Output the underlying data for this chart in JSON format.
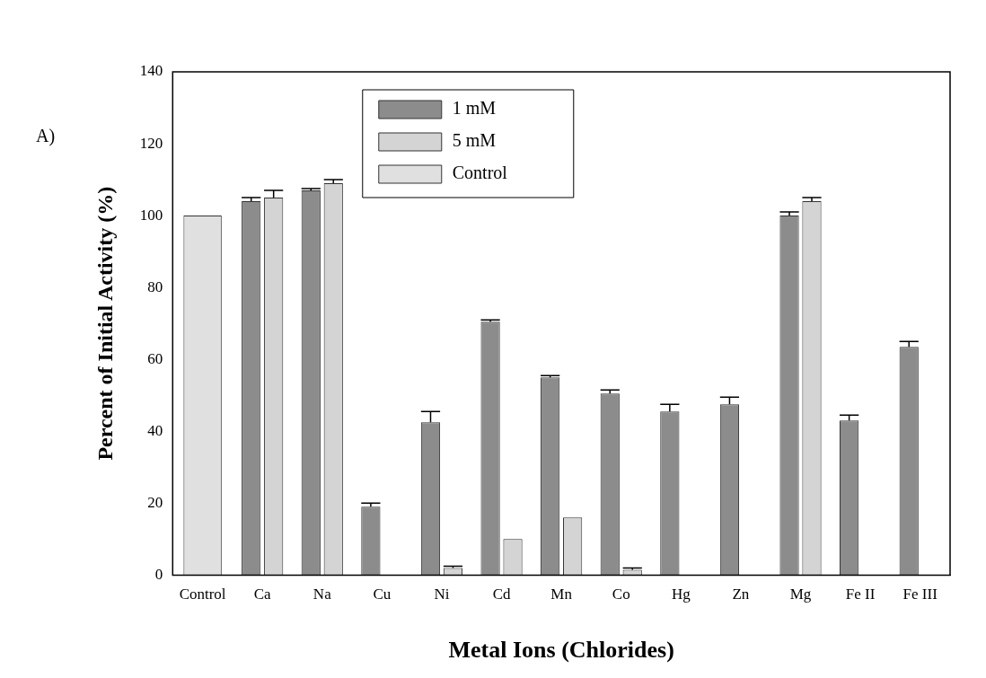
{
  "chart_data": {
    "type": "bar",
    "xlabel": "Metal Ions (Chlorides)",
    "ylabel": "Percent of Initial Activity (%)",
    "annotations": [
      "A)"
    ],
    "categories": [
      "Control",
      "Ca",
      "Na",
      "Cu",
      "Ni",
      "Cd",
      "Mn",
      "Co",
      "Hg",
      "Zn",
      "Mg",
      "Fe II",
      "Fe III"
    ],
    "series": [
      {
        "name": "1 mM",
        "color": "#8c8c8c",
        "values": [
          null,
          104,
          107,
          19,
          42.5,
          70.5,
          55,
          50.5,
          45.5,
          47.5,
          100,
          43,
          63.5
        ],
        "errors": [
          null,
          [
            104,
            105
          ],
          [
            107,
            107.5
          ],
          [
            19,
            20
          ],
          [
            42.5,
            45.5
          ],
          [
            70.5,
            71
          ],
          [
            55,
            55.5
          ],
          [
            50.5,
            51.5
          ],
          [
            45.5,
            47.5
          ],
          [
            47.5,
            49.5
          ],
          [
            100,
            101
          ],
          [
            43,
            44.5
          ],
          [
            63.5,
            65
          ]
        ]
      },
      {
        "name": "5 mM",
        "color": "#d4d4d4",
        "values": [
          null,
          105,
          109,
          0,
          2,
          10,
          16,
          1.5,
          0,
          0,
          104,
          0,
          0
        ],
        "errors": [
          null,
          [
            105,
            107
          ],
          [
            109,
            110
          ],
          null,
          [
            2,
            2.5
          ],
          null,
          null,
          [
            1.5,
            2
          ],
          null,
          null,
          [
            104,
            105
          ],
          null,
          null
        ]
      },
      {
        "name": "Control",
        "color": "#e0e0e0",
        "values": [
          100,
          null,
          null,
          null,
          null,
          null,
          null,
          null,
          null,
          null,
          null,
          null,
          null
        ]
      }
    ],
    "ylim": [
      0,
      140
    ],
    "yticks": [
      0,
      20,
      40,
      60,
      80,
      100,
      120,
      140
    ],
    "grid": false,
    "legend": "top"
  }
}
